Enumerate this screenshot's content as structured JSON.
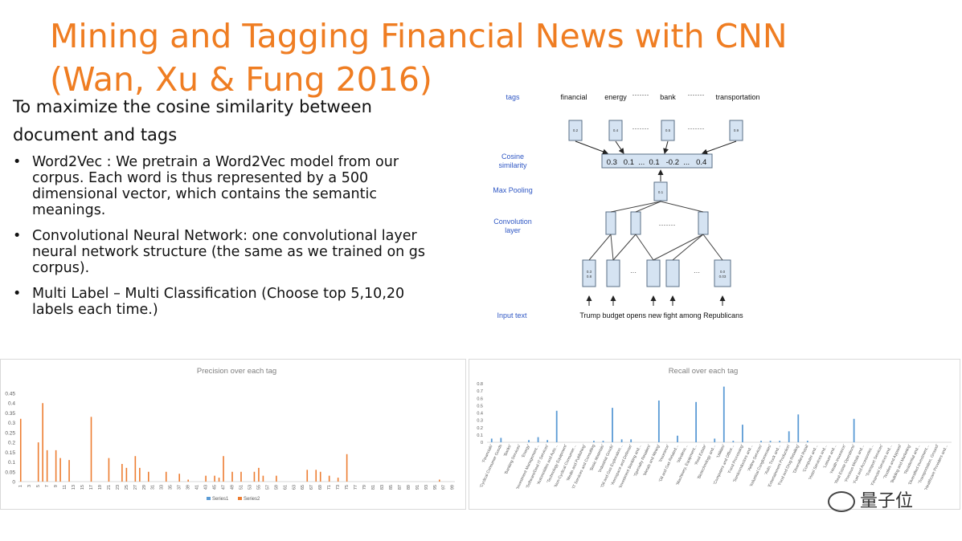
{
  "slide": {
    "title_line1": "Mining and Tagging Financial News with CNN",
    "title_line2": "(Wan, Xu & Fung 2016)",
    "intro_line1": "To maximize the cosine similarity between",
    "intro_line2": "document and tags",
    "bullets": [
      "Word2Vec : We pretrain a Word2Vec model from our corpus. Each word is thus represented by a 500 dimensional vector, which contains the semantic meanings.",
      "Convolutional Neural Network: one convolutional layer neural network structure (the same as we trained on gs corpus).",
      "Multi Label – Multi Classification (Choose top 5,10,20 labels each time.)"
    ]
  },
  "diagram": {
    "row_labels": {
      "tags": "tags",
      "cosine": "Cosine similarity",
      "pool": "Max Pooling",
      "conv": "Convolution layer",
      "input": "Input text"
    },
    "tags": [
      "financial",
      "energy",
      "·······",
      "bank",
      "·······",
      "transportation"
    ],
    "tag_values": [
      "0.2",
      "0.4",
      "0.5",
      "0.9"
    ],
    "cosine_row": "0.3   0.1  ...  0.1   -0.2  ...   0.4",
    "pool_value": "0.1",
    "input_values": [
      "0.3\n0.8",
      "0.0\n0.03"
    ],
    "input_sentence": "Trump budget opens new fight among Republicans",
    "colors": {
      "box_fill": "#d5e3f2",
      "box_stroke": "#5a6f86",
      "label_blue": "#2f57c4",
      "arrow": "#222222"
    }
  },
  "chart_data": [
    {
      "type": "bar",
      "title": "Precision over each tag",
      "ylim": [
        0,
        0.45
      ],
      "yticks": [
        "0",
        "0.05",
        "0.1",
        "0.15",
        "0.2",
        "0.25",
        "0.3",
        "0.35",
        "0.4",
        "0.45"
      ],
      "xticks": [
        "1",
        "3",
        "5",
        "7",
        "9",
        "11",
        "13",
        "15",
        "17",
        "19",
        "21",
        "23",
        "25",
        "27",
        "29",
        "31",
        "33",
        "35",
        "37",
        "39",
        "41",
        "43",
        "45",
        "47",
        "49",
        "51",
        "53",
        "55",
        "57",
        "59",
        "61",
        "63",
        "65",
        "67",
        "69",
        "71",
        "73",
        "75",
        "77",
        "79",
        "81",
        "83",
        "85",
        "87",
        "89",
        "91",
        "93",
        "95",
        "97",
        "99"
      ],
      "legend": [
        "Series1",
        "Series2"
      ],
      "legend_position": "bottom",
      "series_colors": [
        "#5b9bd5",
        "#ed7d31"
      ],
      "series": [
        {
          "name": "Series1",
          "values": []
        },
        {
          "name": "Series2",
          "values": [
            [
              1,
              0.32
            ],
            [
              5,
              0.2
            ],
            [
              6,
              0.4
            ],
            [
              7,
              0.16
            ],
            [
              9,
              0.16
            ],
            [
              10,
              0.12
            ],
            [
              12,
              0.11
            ],
            [
              17,
              0.33
            ],
            [
              21,
              0.12
            ],
            [
              24,
              0.09
            ],
            [
              25,
              0.07
            ],
            [
              27,
              0.13
            ],
            [
              28,
              0.07
            ],
            [
              30,
              0.05
            ],
            [
              34,
              0.05
            ],
            [
              37,
              0.04
            ],
            [
              39,
              0.01
            ],
            [
              43,
              0.03
            ],
            [
              45,
              0.03
            ],
            [
              46,
              0.02
            ],
            [
              47,
              0.13
            ],
            [
              49,
              0.05
            ],
            [
              51,
              0.05
            ],
            [
              54,
              0.05
            ],
            [
              55,
              0.07
            ],
            [
              56,
              0.03
            ],
            [
              59,
              0.03
            ],
            [
              66,
              0.06
            ],
            [
              68,
              0.06
            ],
            [
              69,
              0.05
            ],
            [
              71,
              0.03
            ],
            [
              73,
              0.02
            ],
            [
              75,
              0.14
            ],
            [
              96,
              0.01
            ]
          ]
        }
      ]
    },
    {
      "type": "bar",
      "title": "Recall over each tag",
      "ylim": [
        0,
        0.8
      ],
      "yticks": [
        "0",
        "0.1",
        "0.2",
        "0.3",
        "0.4",
        "0.5",
        "0.6",
        "0.7",
        "0.8"
      ],
      "categories": [
        "'Financials'",
        "'Cyclical Consumer Goods",
        "'Banks'",
        "'Banking Services'",
        "'Energy'",
        "'Investment Management…",
        "'Software/Deal IT Services'",
        "'Automobiles and Auto…",
        "'Technology Equipment'",
        "'Non-Cyclical Consumer…",
        "'Media and Publishing'",
        "'IT Services and Consulting",
        "'Basic Materials'",
        "'Industrial Goods'",
        "'Oil and Gas Exploration…",
        "'Aerospace and Defense'",
        "'Investment Banking and…",
        "'Specialty Retailers'",
        "'Metals and Mining'",
        "'Insurance'",
        "'Oil and Gas Related…",
        "'Wireless…",
        "'Machinery, Equipment…",
        "'Real Estate'",
        "'Biotechnology and…",
        "'Utilities'",
        "'Computers and Office…",
        "'Food Processing'",
        "'Semiconductors and…",
        "'Airline Services'",
        "'Industrial Conglomerates'",
        "'Auto, Truck and…",
        "'Entertainment Production'",
        "'Food and Drug Retailing'",
        "'Diversified Retail'",
        "'Computer and…",
        "'Hotel Services and…",
        "'Leisure and…",
        "'Health Insurance'",
        "'Real Estate Operations'",
        "'Precious Metals and…",
        "'Fuel and Accessories…",
        "'Transport Services'",
        "'Financial Services and…",
        "'Textiles and Apparel'",
        "'Building and Marketing'",
        "'Residential and…",
        "'Diversified Investment…",
        "'Transportation, Ground'",
        "'Healthcare Providers and…"
      ],
      "values": [
        0.05,
        0.06,
        0,
        0,
        0.03,
        0.07,
        0.03,
        0.43,
        0,
        0,
        0,
        0.02,
        0.02,
        0.47,
        0.04,
        0.04,
        0,
        0,
        0.57,
        0,
        0.09,
        0,
        0.55,
        0,
        0.05,
        0.76,
        0.02,
        0.24,
        0,
        0.02,
        0.02,
        0.02,
        0.15,
        0.38,
        0.02,
        0,
        0,
        0,
        0,
        0.32,
        0,
        0,
        0,
        0,
        0,
        0,
        0,
        0,
        0,
        0
      ],
      "series_colors": [
        "#5b9bd5"
      ]
    }
  ],
  "watermark": {
    "text": "量子位"
  }
}
